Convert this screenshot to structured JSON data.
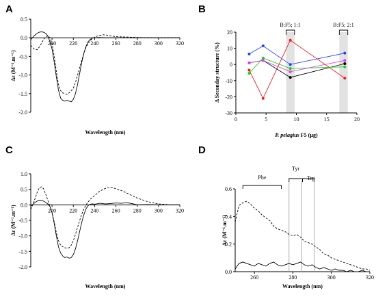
{
  "panels": {
    "A": {
      "label": "A",
      "chart_data": {
        "type": "line",
        "xlabel": "Wavelength (nm)",
        "ylabel": "Δε (M⁻¹.m⁻¹)",
        "xlim": [
          180,
          320
        ],
        "ylim": [
          -2.0,
          0.5
        ],
        "xticks": [
          200,
          220,
          240,
          260,
          280,
          300,
          320
        ],
        "yticks": [
          0.5,
          0.0,
          -0.5,
          -1.0,
          -1.5,
          -2.0
        ],
        "series": [
          {
            "style": "solid",
            "x": [
              180,
              183,
              186,
              188,
              190,
              192,
              194,
              196,
              198,
              200,
              202,
              204,
              206,
              208,
              210,
              212,
              214,
              216,
              218,
              220,
              222,
              224,
              226,
              228,
              230,
              232,
              234,
              236,
              238,
              240,
              244,
              250,
              260,
              270,
              280,
              290,
              300,
              310,
              320
            ],
            "y": [
              -0.05,
              0.05,
              0.12,
              0.15,
              0.16,
              0.15,
              0.12,
              0.05,
              -0.1,
              -0.3,
              -0.65,
              -1.05,
              -1.4,
              -1.62,
              -1.68,
              -1.7,
              -1.68,
              -1.7,
              -1.72,
              -1.65,
              -1.5,
              -1.25,
              -0.95,
              -0.65,
              -0.4,
              -0.22,
              -0.1,
              -0.04,
              -0.01,
              0.0,
              0.01,
              0.0,
              0.0,
              0.0,
              0.0,
              0.0,
              0.0,
              0.0,
              0.0
            ]
          },
          {
            "style": "dashed",
            "x": [
              180,
              183,
              186,
              188,
              190,
              192,
              194,
              196,
              198,
              200,
              202,
              204,
              206,
              208,
              210,
              212,
              214,
              216,
              218,
              220,
              222,
              224,
              226,
              228,
              230,
              232,
              234,
              236,
              238,
              240,
              244,
              248,
              252,
              256,
              260,
              270,
              280,
              290,
              300,
              310,
              320
            ],
            "y": [
              -0.2,
              -0.3,
              -0.32,
              -0.25,
              -0.15,
              -0.05,
              0.03,
              0.05,
              0.0,
              -0.15,
              -0.5,
              -0.9,
              -1.25,
              -1.42,
              -1.48,
              -1.5,
              -1.52,
              -1.48,
              -1.42,
              -1.35,
              -1.2,
              -1.0,
              -0.8,
              -0.6,
              -0.4,
              -0.25,
              -0.15,
              -0.07,
              -0.02,
              0.02,
              0.06,
              0.08,
              0.07,
              0.05,
              0.03,
              0.02,
              0.01,
              0.0,
              0.0,
              0.0,
              0.0
            ]
          }
        ]
      }
    },
    "B": {
      "label": "B",
      "chart_data": {
        "type": "line",
        "xlabel_italic": "P. pelagius",
        "xlabel_rest": " F5 (µg)",
        "ylabel": "Δ Seconday structure (%)",
        "xlim": [
          0,
          20
        ],
        "ylim": [
          -30,
          20
        ],
        "xticks": [
          0,
          5,
          10,
          15,
          20
        ],
        "yticks": [
          20,
          10,
          0,
          -10,
          -20,
          -30
        ],
        "annotations": [
          {
            "text": "B:F5; 1:1",
            "x0": 8.3,
            "x1": 9.7
          },
          {
            "text": "B:F5; 2:1",
            "x0": 17.1,
            "x1": 18.5
          }
        ],
        "x": [
          2.2,
          4.5,
          9.0,
          18.0
        ],
        "series": [
          {
            "color": "#2040ff",
            "values": [
              6.5,
              11.5,
              0.0,
              7.0
            ]
          },
          {
            "color": "#e82020",
            "values": [
              -3.5,
              -21.0,
              15.0,
              -8.5
            ]
          },
          {
            "color": "#000000",
            "values": [
              1.0,
              2.5,
              -8.0,
              0.5
            ]
          },
          {
            "color": "#20d020",
            "values": [
              -5.5,
              4.0,
              -2.5,
              -1.5
            ]
          },
          {
            "color": "#e040e0",
            "values": [
              1.0,
              2.5,
              -4.5,
              2.5
            ]
          }
        ]
      }
    },
    "C": {
      "label": "C",
      "chart_data": {
        "type": "line",
        "xlabel": "Wavelength (nm)",
        "ylabel": "Δε (M⁻¹.m⁻¹)",
        "xlim": [
          180,
          320
        ],
        "ylim": [
          -2.0,
          1.0
        ],
        "xticks": [
          200,
          220,
          240,
          260,
          280,
          300,
          320
        ],
        "yticks": [
          1.0,
          0.5,
          0.0,
          -0.5,
          -1.0,
          -1.5,
          -2.0
        ],
        "series": [
          {
            "style": "solid",
            "x": [
              180,
              183,
              186,
              188,
              190,
              192,
              194,
              196,
              198,
              200,
              202,
              204,
              206,
              208,
              210,
              212,
              214,
              216,
              218,
              220,
              222,
              224,
              226,
              228,
              230,
              232,
              234,
              236,
              238,
              240,
              245,
              250,
              255,
              260,
              265,
              270,
              275,
              280,
              290,
              300,
              310,
              320
            ],
            "y": [
              -0.05,
              0.05,
              0.12,
              0.15,
              0.14,
              0.12,
              0.08,
              0.03,
              -0.05,
              -0.25,
              -0.6,
              -1.0,
              -1.35,
              -1.55,
              -1.65,
              -1.7,
              -1.68,
              -1.72,
              -1.7,
              -1.6,
              -1.42,
              -1.15,
              -0.85,
              -0.55,
              -0.3,
              -0.12,
              -0.02,
              0.02,
              0.03,
              0.02,
              0.05,
              0.03,
              0.04,
              0.06,
              0.05,
              0.07,
              0.04,
              0.0,
              0.01,
              0.0,
              0.0,
              0.0
            ]
          },
          {
            "style": "dashed",
            "x": [
              180,
              183,
              186,
              188,
              190,
              192,
              194,
              196,
              198,
              200,
              202,
              204,
              206,
              208,
              210,
              212,
              214,
              216,
              218,
              220,
              222,
              224,
              226,
              228,
              230,
              232,
              234,
              236,
              238,
              240,
              244,
              248,
              252,
              256,
              260,
              266,
              272,
              280,
              290,
              300,
              310,
              320
            ],
            "y": [
              -0.15,
              0.1,
              0.4,
              0.55,
              0.58,
              0.52,
              0.35,
              0.15,
              -0.05,
              -0.25,
              -0.55,
              -0.9,
              -1.15,
              -1.3,
              -1.35,
              -1.38,
              -1.4,
              -1.38,
              -1.3,
              -1.15,
              -0.95,
              -0.72,
              -0.5,
              -0.3,
              -0.12,
              0.0,
              0.1,
              0.18,
              0.25,
              0.3,
              0.42,
              0.5,
              0.55,
              0.56,
              0.52,
              0.45,
              0.35,
              0.22,
              0.1,
              0.03,
              0.0,
              0.0
            ]
          }
        ]
      }
    },
    "D": {
      "label": "D",
      "chart_data": {
        "type": "line",
        "xlabel": "Wavelength (nm)",
        "ylabel": "Δε (M⁻¹.m⁻¹)",
        "xlim": [
          250,
          320
        ],
        "ylim": [
          0.0,
          0.6
        ],
        "xticks": [
          260,
          280,
          300,
          320
        ],
        "yticks": [
          0.0,
          0.2,
          0.4,
          0.6
        ],
        "ranges": [
          {
            "label": "Phe",
            "x0": 254,
            "x1": 274
          },
          {
            "label": "Tyr",
            "x0": 278,
            "x1": 285
          },
          {
            "label": "Trp",
            "x0": 285,
            "x1": 291
          }
        ],
        "vlines": [
          278,
          284.5,
          291
        ],
        "series": [
          {
            "style": "dashed",
            "x": [
              250,
              252,
              254,
              256,
              258,
              260,
              262,
              264,
              266,
              268,
              270,
              272,
              274,
              276,
              278,
              280,
              282,
              284,
              286,
              288,
              290,
              292,
              294,
              296,
              298,
              300,
              302,
              304,
              306,
              308,
              310,
              312,
              314,
              316,
              318,
              320
            ],
            "y": [
              0.36,
              0.48,
              0.5,
              0.51,
              0.49,
              0.46,
              0.44,
              0.41,
              0.39,
              0.37,
              0.33,
              0.31,
              0.3,
              0.29,
              0.27,
              0.26,
              0.27,
              0.25,
              0.22,
              0.21,
              0.2,
              0.18,
              0.16,
              0.13,
              0.12,
              0.1,
              0.09,
              0.08,
              0.07,
              0.06,
              0.05,
              0.04,
              0.03,
              0.02,
              0.02,
              0.01
            ]
          },
          {
            "style": "solid",
            "x": [
              250,
              252,
              254,
              256,
              258,
              260,
              262,
              264,
              266,
              268,
              270,
              272,
              274,
              276,
              278,
              280,
              282,
              284,
              286,
              288,
              290,
              292,
              294,
              296,
              298,
              300,
              302,
              304,
              306,
              308,
              310,
              312,
              314,
              316,
              318,
              320
            ],
            "y": [
              0.02,
              0.06,
              0.07,
              0.06,
              0.05,
              0.04,
              0.06,
              0.05,
              0.04,
              0.06,
              0.07,
              0.05,
              0.04,
              0.05,
              0.06,
              0.05,
              0.06,
              0.07,
              0.05,
              0.04,
              0.05,
              0.03,
              0.02,
              0.03,
              0.02,
              0.01,
              0.02,
              0.01,
              0.01,
              0.0,
              0.01,
              0.0,
              0.0,
              0.01,
              0.0,
              0.0
            ]
          }
        ]
      }
    }
  }
}
